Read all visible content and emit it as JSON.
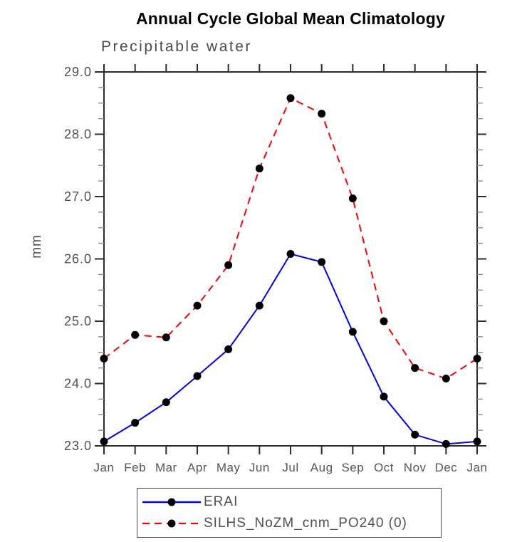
{
  "chart_data": {
    "type": "line",
    "title": "Annual Cycle Global Mean Climatology",
    "subtitle": "Precipitable water",
    "xlabel": "",
    "ylabel": "mm",
    "categories": [
      "Jan",
      "Feb",
      "Mar",
      "Apr",
      "May",
      "Jun",
      "Jul",
      "Aug",
      "Sep",
      "Oct",
      "Nov",
      "Dec",
      "Jan"
    ],
    "ylim": [
      23.0,
      29.0
    ],
    "ytick_labels": [
      "23.0",
      "24.0",
      "25.0",
      "26.0",
      "27.0",
      "28.0",
      "29.0"
    ],
    "ytick_major_step": 1.0,
    "ytick_minor_step": 0.25,
    "grid": false,
    "legend_position": "bottom",
    "series": [
      {
        "name": "ERAI",
        "color": "#0000ff",
        "line_style": "solid",
        "marker": "filled-circle",
        "marker_color": "#000000",
        "values": [
          23.07,
          23.37,
          23.7,
          24.12,
          24.55,
          25.25,
          26.08,
          25.95,
          24.83,
          23.79,
          23.18,
          23.03,
          23.07
        ]
      },
      {
        "name": "SILHS_NoZM_cnm_PO240 (0)",
        "color": "#ff0000",
        "line_style": "dashed",
        "marker": "filled-circle",
        "marker_color": "#000000",
        "values": [
          24.4,
          24.78,
          24.74,
          25.25,
          25.9,
          27.45,
          28.58,
          28.33,
          26.97,
          25.0,
          24.25,
          24.08,
          24.4
        ]
      }
    ]
  }
}
